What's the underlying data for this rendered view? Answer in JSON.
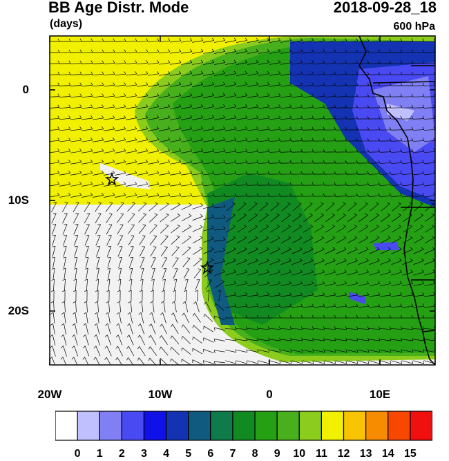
{
  "title": "BB Age Distr. Mode",
  "units": "(days)",
  "date": "2018-09-28_18",
  "level": "600 hPa",
  "lat_labels": [
    "0",
    "10S",
    "20S"
  ],
  "lon_labels": [
    "20W",
    "10W",
    "0",
    "10E"
  ],
  "colorbar": {
    "labels": [
      "0",
      "1",
      "2",
      "3",
      "4",
      "5",
      "6",
      "7",
      "8",
      "9",
      "10",
      "11",
      "12",
      "13",
      "14",
      "15"
    ],
    "colors": [
      "#ffffff",
      "#c0c0ff",
      "#8080f4",
      "#4a4af2",
      "#1010e8",
      "#1433b2",
      "#0f5a7e",
      "#0f7a4a",
      "#128a22",
      "#25a014",
      "#48b01c",
      "#8ccc1c",
      "#f0f000",
      "#f8c400",
      "#f88c00",
      "#f84800",
      "#f01010"
    ]
  },
  "map_colors": {
    "yellow": "#f0f000",
    "yellowgreen": "#8ccc1c",
    "lightgreen": "#48b01c",
    "green": "#25a014",
    "darkgreen": "#128a22",
    "teal": "#0f5a7e",
    "navy": "#1433b2",
    "blue": "#4a4af2",
    "lightblue": "#8080f4",
    "pale": "#c0c0ff",
    "white": "#f2f2f2"
  },
  "markers": [
    {
      "name": "star-west",
      "lon": -14.5,
      "lat": -8.0
    },
    {
      "name": "star-ascension",
      "lon": -5.7,
      "lat": -16.0
    }
  ]
}
